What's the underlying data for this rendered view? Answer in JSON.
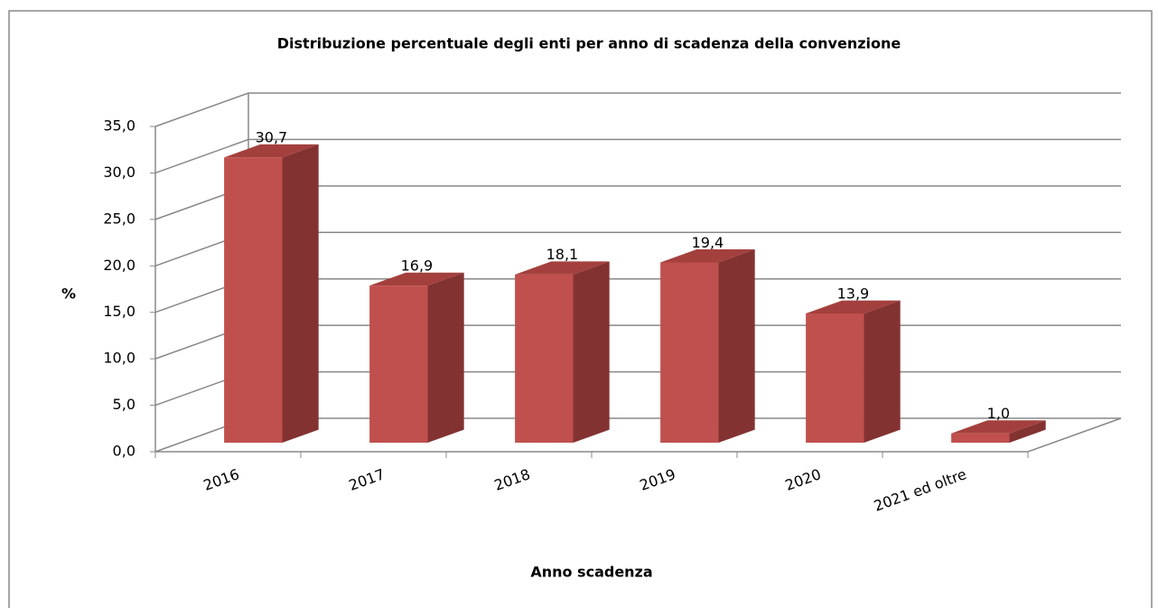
{
  "chart_data": {
    "type": "bar3d",
    "title": "Distribuzione  percentuale degli enti per anno di scadenza della convenzione",
    "x_label": "Anno scadenza",
    "y_label": "%",
    "categories": [
      "2016",
      "2017",
      "2018",
      "2019",
      "2020",
      "2021 ed oltre"
    ],
    "values": [
      30.7,
      16.9,
      18.1,
      19.4,
      13.9,
      1.0
    ],
    "value_labels": [
      "30,7",
      "16,9",
      "18,1",
      "19,4",
      "13,9",
      "1,0"
    ],
    "color": "#c0504d",
    "ylim": [
      0,
      35
    ],
    "yticks": [
      {
        "value": 0,
        "label": "0,0"
      },
      {
        "value": 5,
        "label": "5,0"
      },
      {
        "value": 10,
        "label": "10,0"
      },
      {
        "value": 15,
        "label": "15,0"
      },
      {
        "value": 20,
        "label": "20,0"
      },
      {
        "value": 25,
        "label": "25,0"
      },
      {
        "value": 30,
        "label": "30,0"
      },
      {
        "value": 35,
        "label": "35,0"
      }
    ],
    "grid": true
  }
}
